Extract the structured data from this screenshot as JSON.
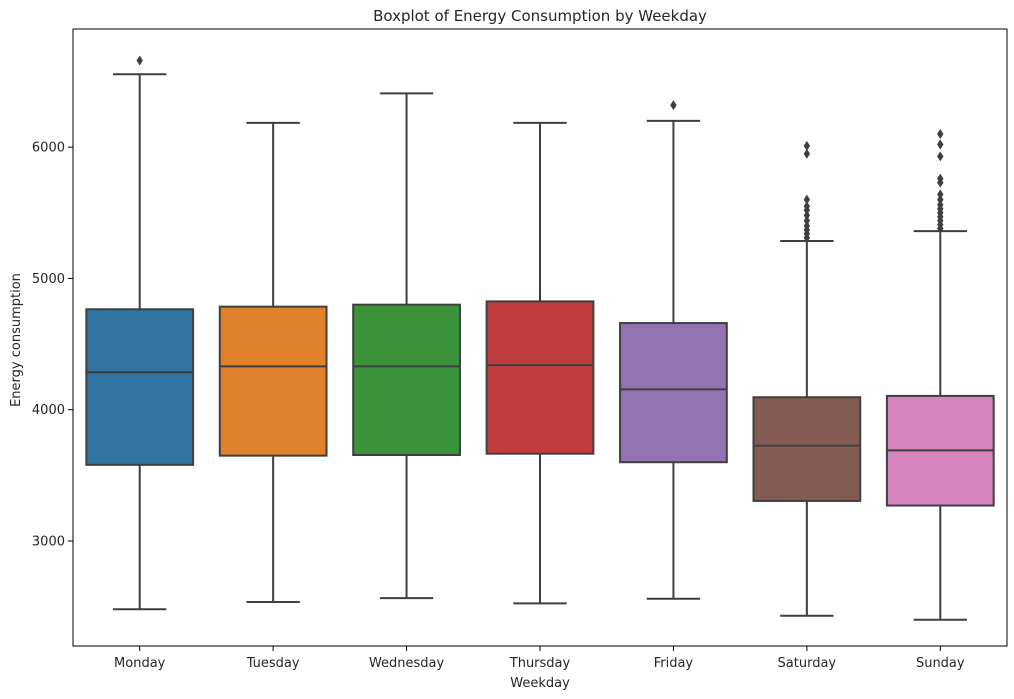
{
  "chart_data": {
    "type": "boxplot",
    "title": "Boxplot of Energy Consumption by Weekday",
    "xlabel": "Weekday",
    "ylabel": "Energy consumption",
    "ylim": [
      2200,
      6900
    ],
    "yticks": [
      3000,
      4000,
      5000,
      6000
    ],
    "grid": false,
    "categories": [
      "Monday",
      "Tuesday",
      "Wednesday",
      "Thursday",
      "Friday",
      "Saturday",
      "Sunday"
    ],
    "colors": [
      "#3274a1",
      "#e1812c",
      "#3a923a",
      "#c03d3e",
      "#9372b2",
      "#845b53",
      "#d684bd"
    ],
    "boxes": [
      {
        "whisker_low": 2480,
        "q1": 3580,
        "median": 4285,
        "q3": 4765,
        "whisker_high": 6555,
        "outliers": [
          6660
        ]
      },
      {
        "whisker_low": 2535,
        "q1": 3650,
        "median": 4330,
        "q3": 4785,
        "whisker_high": 6185,
        "outliers": []
      },
      {
        "whisker_low": 2565,
        "q1": 3655,
        "median": 4330,
        "q3": 4800,
        "whisker_high": 6410,
        "outliers": []
      },
      {
        "whisker_low": 2525,
        "q1": 3665,
        "median": 4340,
        "q3": 4825,
        "whisker_high": 6185,
        "outliers": []
      },
      {
        "whisker_low": 2560,
        "q1": 3600,
        "median": 4155,
        "q3": 4660,
        "whisker_high": 6200,
        "outliers": [
          6320
        ]
      },
      {
        "whisker_low": 2430,
        "q1": 3305,
        "median": 3725,
        "q3": 4095,
        "whisker_high": 5285,
        "outliers": [
          5310,
          5340,
          5370,
          5400,
          5440,
          5480,
          5520,
          5550,
          5600,
          5950,
          6010
        ]
      },
      {
        "whisker_low": 2400,
        "q1": 3270,
        "median": 3690,
        "q3": 4105,
        "whisker_high": 5360,
        "outliers": [
          5380,
          5410,
          5440,
          5470,
          5500,
          5530,
          5560,
          5600,
          5640,
          5730,
          5760,
          5930,
          6020,
          6100
        ]
      }
    ]
  }
}
